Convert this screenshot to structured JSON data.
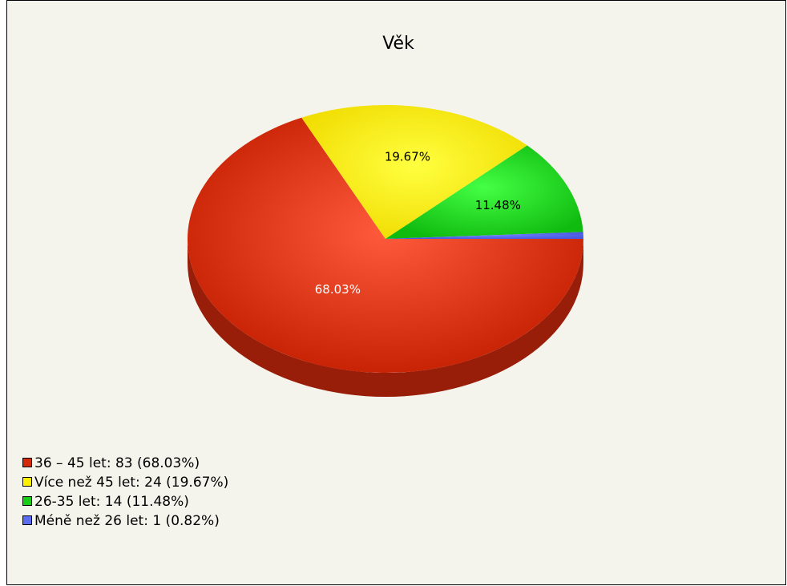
{
  "chart_data": {
    "type": "pie",
    "title": "Věk",
    "categories": [
      "36 – 45 let: 83 (68.03%)",
      "Více než 45 let: 24 (19.67%)",
      "26-35 let: 14 (11.48%)",
      "Méně než 26 let: 1 (0.82%)"
    ],
    "values": [
      68.03,
      19.67,
      11.48,
      0.82
    ],
    "value_labels": [
      "68.03%",
      "19.67%",
      "11.48%",
      null
    ],
    "colors": [
      "#d42a0c",
      "#fff000",
      "#18cc18",
      "#5a6cf0"
    ]
  }
}
